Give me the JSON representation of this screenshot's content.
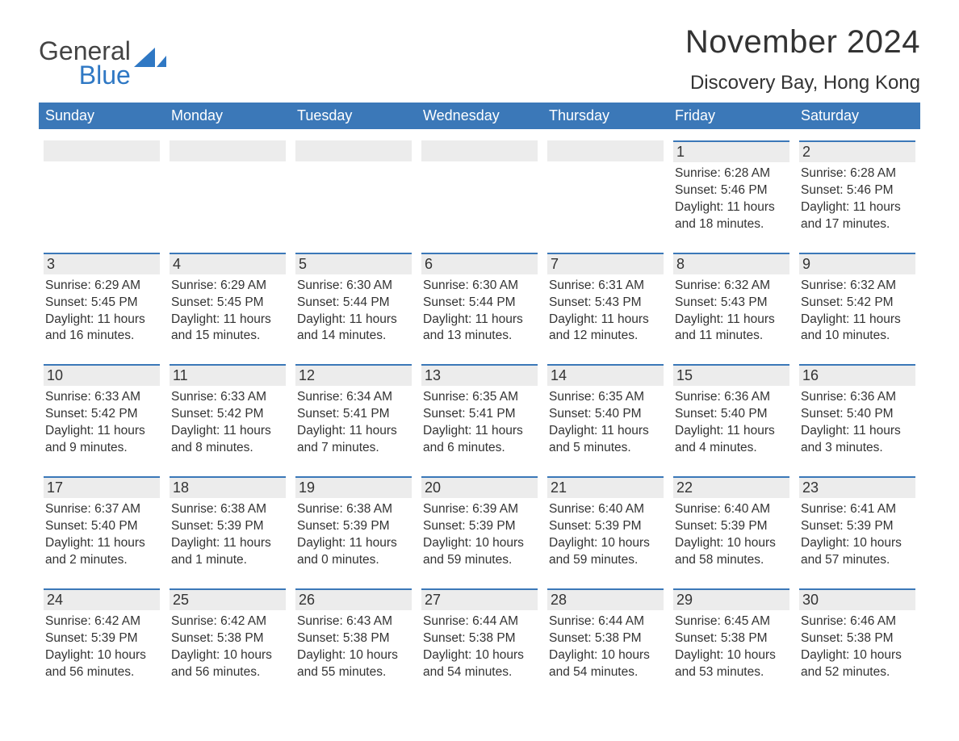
{
  "brand": {
    "line1": "General",
    "line2": "Blue",
    "icon_color": "#2f78c4"
  },
  "title": "November 2024",
  "location": "Discovery Bay, Hong Kong",
  "colors": {
    "header_bg": "#3b78b8",
    "header_text": "#ffffff",
    "daynum_bg": "#ececec",
    "daynum_border": "#3b78b8",
    "text": "#333333",
    "page_bg": "#ffffff"
  },
  "layout": {
    "columns": 7,
    "rows": 5,
    "cell_font_size_pt": 11,
    "weekday_font_size_pt": 14,
    "title_font_size_pt": 30,
    "location_font_size_pt": 18
  },
  "weekdays": [
    "Sunday",
    "Monday",
    "Tuesday",
    "Wednesday",
    "Thursday",
    "Friday",
    "Saturday"
  ],
  "weeks": [
    [
      {
        "empty": true
      },
      {
        "empty": true
      },
      {
        "empty": true
      },
      {
        "empty": true
      },
      {
        "empty": true
      },
      {
        "day": "1",
        "sunrise": "Sunrise: 6:28 AM",
        "sunset": "Sunset: 5:46 PM",
        "daylight": "Daylight: 11 hours and 18 minutes."
      },
      {
        "day": "2",
        "sunrise": "Sunrise: 6:28 AM",
        "sunset": "Sunset: 5:46 PM",
        "daylight": "Daylight: 11 hours and 17 minutes."
      }
    ],
    [
      {
        "day": "3",
        "sunrise": "Sunrise: 6:29 AM",
        "sunset": "Sunset: 5:45 PM",
        "daylight": "Daylight: 11 hours and 16 minutes."
      },
      {
        "day": "4",
        "sunrise": "Sunrise: 6:29 AM",
        "sunset": "Sunset: 5:45 PM",
        "daylight": "Daylight: 11 hours and 15 minutes."
      },
      {
        "day": "5",
        "sunrise": "Sunrise: 6:30 AM",
        "sunset": "Sunset: 5:44 PM",
        "daylight": "Daylight: 11 hours and 14 minutes."
      },
      {
        "day": "6",
        "sunrise": "Sunrise: 6:30 AM",
        "sunset": "Sunset: 5:44 PM",
        "daylight": "Daylight: 11 hours and 13 minutes."
      },
      {
        "day": "7",
        "sunrise": "Sunrise: 6:31 AM",
        "sunset": "Sunset: 5:43 PM",
        "daylight": "Daylight: 11 hours and 12 minutes."
      },
      {
        "day": "8",
        "sunrise": "Sunrise: 6:32 AM",
        "sunset": "Sunset: 5:43 PM",
        "daylight": "Daylight: 11 hours and 11 minutes."
      },
      {
        "day": "9",
        "sunrise": "Sunrise: 6:32 AM",
        "sunset": "Sunset: 5:42 PM",
        "daylight": "Daylight: 11 hours and 10 minutes."
      }
    ],
    [
      {
        "day": "10",
        "sunrise": "Sunrise: 6:33 AM",
        "sunset": "Sunset: 5:42 PM",
        "daylight": "Daylight: 11 hours and 9 minutes."
      },
      {
        "day": "11",
        "sunrise": "Sunrise: 6:33 AM",
        "sunset": "Sunset: 5:42 PM",
        "daylight": "Daylight: 11 hours and 8 minutes."
      },
      {
        "day": "12",
        "sunrise": "Sunrise: 6:34 AM",
        "sunset": "Sunset: 5:41 PM",
        "daylight": "Daylight: 11 hours and 7 minutes."
      },
      {
        "day": "13",
        "sunrise": "Sunrise: 6:35 AM",
        "sunset": "Sunset: 5:41 PM",
        "daylight": "Daylight: 11 hours and 6 minutes."
      },
      {
        "day": "14",
        "sunrise": "Sunrise: 6:35 AM",
        "sunset": "Sunset: 5:40 PM",
        "daylight": "Daylight: 11 hours and 5 minutes."
      },
      {
        "day": "15",
        "sunrise": "Sunrise: 6:36 AM",
        "sunset": "Sunset: 5:40 PM",
        "daylight": "Daylight: 11 hours and 4 minutes."
      },
      {
        "day": "16",
        "sunrise": "Sunrise: 6:36 AM",
        "sunset": "Sunset: 5:40 PM",
        "daylight": "Daylight: 11 hours and 3 minutes."
      }
    ],
    [
      {
        "day": "17",
        "sunrise": "Sunrise: 6:37 AM",
        "sunset": "Sunset: 5:40 PM",
        "daylight": "Daylight: 11 hours and 2 minutes."
      },
      {
        "day": "18",
        "sunrise": "Sunrise: 6:38 AM",
        "sunset": "Sunset: 5:39 PM",
        "daylight": "Daylight: 11 hours and 1 minute."
      },
      {
        "day": "19",
        "sunrise": "Sunrise: 6:38 AM",
        "sunset": "Sunset: 5:39 PM",
        "daylight": "Daylight: 11 hours and 0 minutes."
      },
      {
        "day": "20",
        "sunrise": "Sunrise: 6:39 AM",
        "sunset": "Sunset: 5:39 PM",
        "daylight": "Daylight: 10 hours and 59 minutes."
      },
      {
        "day": "21",
        "sunrise": "Sunrise: 6:40 AM",
        "sunset": "Sunset: 5:39 PM",
        "daylight": "Daylight: 10 hours and 59 minutes."
      },
      {
        "day": "22",
        "sunrise": "Sunrise: 6:40 AM",
        "sunset": "Sunset: 5:39 PM",
        "daylight": "Daylight: 10 hours and 58 minutes."
      },
      {
        "day": "23",
        "sunrise": "Sunrise: 6:41 AM",
        "sunset": "Sunset: 5:39 PM",
        "daylight": "Daylight: 10 hours and 57 minutes."
      }
    ],
    [
      {
        "day": "24",
        "sunrise": "Sunrise: 6:42 AM",
        "sunset": "Sunset: 5:39 PM",
        "daylight": "Daylight: 10 hours and 56 minutes."
      },
      {
        "day": "25",
        "sunrise": "Sunrise: 6:42 AM",
        "sunset": "Sunset: 5:38 PM",
        "daylight": "Daylight: 10 hours and 56 minutes."
      },
      {
        "day": "26",
        "sunrise": "Sunrise: 6:43 AM",
        "sunset": "Sunset: 5:38 PM",
        "daylight": "Daylight: 10 hours and 55 minutes."
      },
      {
        "day": "27",
        "sunrise": "Sunrise: 6:44 AM",
        "sunset": "Sunset: 5:38 PM",
        "daylight": "Daylight: 10 hours and 54 minutes."
      },
      {
        "day": "28",
        "sunrise": "Sunrise: 6:44 AM",
        "sunset": "Sunset: 5:38 PM",
        "daylight": "Daylight: 10 hours and 54 minutes."
      },
      {
        "day": "29",
        "sunrise": "Sunrise: 6:45 AM",
        "sunset": "Sunset: 5:38 PM",
        "daylight": "Daylight: 10 hours and 53 minutes."
      },
      {
        "day": "30",
        "sunrise": "Sunrise: 6:46 AM",
        "sunset": "Sunset: 5:38 PM",
        "daylight": "Daylight: 10 hours and 52 minutes."
      }
    ]
  ]
}
